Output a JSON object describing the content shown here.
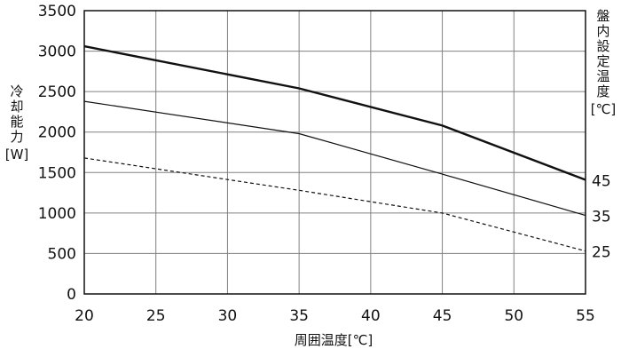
{
  "chart_data": {
    "type": "line",
    "x": [
      20,
      35,
      45,
      55
    ],
    "xlim": [
      20,
      55
    ],
    "ylim": [
      0,
      3500
    ],
    "xticks": [
      20,
      25,
      30,
      35,
      40,
      45,
      50,
      55
    ],
    "yticks": [
      0,
      500,
      1000,
      1500,
      2000,
      2500,
      3000,
      3500
    ],
    "xticklabels": [
      "20",
      "25",
      "30",
      "35",
      "40",
      "45",
      "50",
      "55"
    ],
    "yticklabels": [
      "0",
      "500",
      "1000",
      "1500",
      "2000",
      "2500",
      "3000",
      "3500"
    ],
    "grid": true,
    "xlabel": "周囲温度[℃]",
    "ylabel": "冷却能力",
    "ylabel_unit": "[W]",
    "right_label": "盤内設定温度",
    "right_label_unit": "[℃]",
    "series": [
      {
        "name": "45",
        "values": [
          3060,
          2540,
          2080,
          1410
        ],
        "style": "bold"
      },
      {
        "name": "35",
        "values": [
          2380,
          1980,
          1480,
          970
        ],
        "style": "solid"
      },
      {
        "name": "25",
        "values": [
          1680,
          1280,
          1000,
          530
        ],
        "style": "dashed"
      }
    ],
    "colors": {
      "line": "#111111",
      "grid": "#808080",
      "axis": "#111111"
    }
  }
}
